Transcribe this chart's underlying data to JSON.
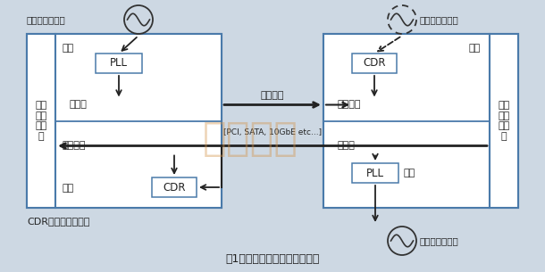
{
  "background_color": "#cdd8e3",
  "title": "图1：通信系统传输线路的构成",
  "cdr_note": "CDR：时钟数据恢复",
  "watermark": "亿金电子",
  "protocol_text": "通信协议",
  "protocol_sub": "[PCI, SATA, 10GbE etc...]",
  "left_label": "数字\n信号\n处理\n器",
  "right_label": "数字\n信号\n处理\n器",
  "left_tx_clock": "发送方基准时钟",
  "right_rx_clock": "接收方基准时钟",
  "right_tx_clock": "发送方基准时钟",
  "box_edge_color": "#4a7aaa",
  "arrow_color": "#222222",
  "text_color": "#222222"
}
